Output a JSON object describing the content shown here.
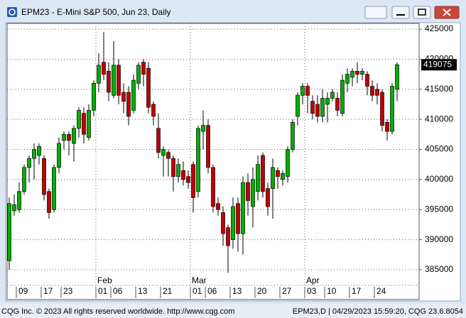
{
  "chart_data": {
    "type": "candlestick",
    "title": "EPM23 - E-Mini S&P 500, Jun 23, Daily",
    "categories": [
      null,
      null,
      "09",
      null,
      null,
      null,
      null,
      "17",
      null,
      null,
      null,
      "23",
      null,
      null,
      null,
      null,
      null,
      null,
      "01",
      null,
      null,
      "06",
      null,
      null,
      null,
      null,
      "13",
      null,
      null,
      null,
      null,
      "21",
      null,
      null,
      null,
      null,
      null,
      "01",
      null,
      null,
      "06",
      null,
      null,
      null,
      null,
      "13",
      null,
      null,
      null,
      null,
      "20",
      null,
      null,
      null,
      null,
      "27",
      null,
      null,
      null,
      null,
      "03",
      null,
      null,
      null,
      "10",
      null,
      null,
      null,
      null,
      "17",
      null,
      null,
      null,
      null,
      "24",
      null,
      null,
      null,
      null
    ],
    "months": [
      null,
      null,
      null,
      null,
      null,
      null,
      null,
      null,
      null,
      null,
      null,
      null,
      null,
      null,
      null,
      null,
      null,
      null,
      "Feb",
      null,
      null,
      null,
      null,
      null,
      null,
      null,
      null,
      null,
      null,
      null,
      null,
      null,
      null,
      null,
      null,
      null,
      null,
      "Mar",
      null,
      null,
      null,
      null,
      null,
      null,
      null,
      null,
      null,
      null,
      null,
      null,
      null,
      null,
      null,
      null,
      null,
      null,
      null,
      null,
      null,
      null,
      "Apr",
      null,
      null,
      null,
      null,
      null,
      null,
      null,
      null,
      null,
      null,
      null,
      null,
      null,
      null,
      null,
      null,
      null,
      null
    ],
    "open": [
      386500,
      394800,
      395000,
      398000,
      402000,
      403500,
      404000,
      403500,
      398000,
      395000,
      402000,
      406500,
      407500,
      406000,
      408500,
      411000,
      407000,
      411500,
      416000,
      419500,
      418000,
      414000,
      419000,
      414500,
      414500,
      411500,
      416000,
      419500,
      418500,
      412500,
      408500,
      404000,
      404500,
      403500,
      400500,
      401500,
      400500,
      402500,
      398000,
      408000,
      409000,
      402000,
      396000,
      394500,
      392000,
      390000,
      396000,
      391000,
      399500,
      395500,
      398000,
      404000,
      398500,
      398500,
      401500,
      400000,
      400500,
      405000,
      410500,
      414000,
      415500,
      413000,
      412500,
      410500,
      412500,
      413500,
      413500,
      411000,
      416000,
      417000,
      418000,
      417500,
      417500,
      415500,
      415000,
      414500,
      409500,
      408000,
      415000
    ],
    "high": [
      397000,
      397500,
      399500,
      402500,
      404000,
      406000,
      406000,
      404000,
      398500,
      402500,
      407000,
      408000,
      408000,
      409000,
      412000,
      412000,
      412500,
      416500,
      421000,
      424500,
      419500,
      423000,
      420000,
      416000,
      415500,
      417500,
      419500,
      420000,
      419500,
      413000,
      411000,
      405500,
      405000,
      404000,
      403500,
      403000,
      401500,
      403000,
      409000,
      411500,
      410000,
      402500,
      397000,
      395500,
      392500,
      397000,
      397000,
      400500,
      401000,
      402000,
      404000,
      404500,
      399500,
      403500,
      402000,
      401500,
      405500,
      410000,
      414500,
      416000,
      416000,
      414000,
      414000,
      415000,
      414500,
      415000,
      414500,
      417500,
      418500,
      418500,
      419500,
      418500,
      418000,
      416500,
      416000,
      415000,
      410000,
      416000,
      419500
    ],
    "low": [
      385000,
      394000,
      394500,
      397500,
      399500,
      400000,
      402500,
      396500,
      393500,
      394500,
      401000,
      405000,
      404000,
      403000,
      407000,
      406000,
      406500,
      410500,
      414500,
      416500,
      413000,
      413500,
      412500,
      411000,
      409000,
      411000,
      415000,
      415500,
      411000,
      409000,
      403500,
      400500,
      400500,
      398000,
      399500,
      399000,
      398500,
      394500,
      397000,
      405000,
      401000,
      394500,
      394000,
      389000,
      384500,
      388500,
      388000,
      387500,
      394000,
      392000,
      396500,
      397000,
      394000,
      393500,
      398500,
      399000,
      399500,
      404500,
      409000,
      412500,
      411000,
      410000,
      409500,
      409500,
      409500,
      413000,
      410500,
      410500,
      414500,
      415500,
      416000,
      416500,
      414000,
      413000,
      412500,
      408000,
      406500,
      407500,
      413000
    ],
    "close": [
      396000,
      395800,
      398000,
      402000,
      403500,
      405000,
      405500,
      397500,
      394500,
      402000,
      406000,
      407500,
      406500,
      408500,
      411500,
      407500,
      411500,
      416000,
      419000,
      417500,
      414500,
      419000,
      414000,
      413000,
      410500,
      416500,
      419000,
      417500,
      412000,
      410500,
      404500,
      405000,
      403500,
      400500,
      402500,
      400000,
      399500,
      397000,
      408500,
      409000,
      402000,
      395500,
      395000,
      391000,
      389000,
      395500,
      391000,
      399500,
      396500,
      400000,
      402500,
      398000,
      395500,
      402000,
      400500,
      401000,
      405000,
      409500,
      414000,
      415500,
      414000,
      411000,
      410500,
      413500,
      413500,
      414500,
      411500,
      416500,
      417500,
      418000,
      417500,
      418000,
      415500,
      414000,
      414000,
      409000,
      408000,
      415500,
      419075
    ],
    "up_color": "#00b000",
    "down_color": "#c00000",
    "ylim": [
      382400,
      425950
    ],
    "yticks": [
      385000,
      390000,
      395000,
      400000,
      405000,
      410000,
      415000,
      420000,
      425000
    ],
    "grid": true,
    "last_price": 419075,
    "footer_left": "CQG Inc. © 2023 All rights reserved worldwide. http://www.cqg.com",
    "footer_right": "EPM23,D | 04/29/2023 15:59:20, CQG 23.6.8054"
  }
}
